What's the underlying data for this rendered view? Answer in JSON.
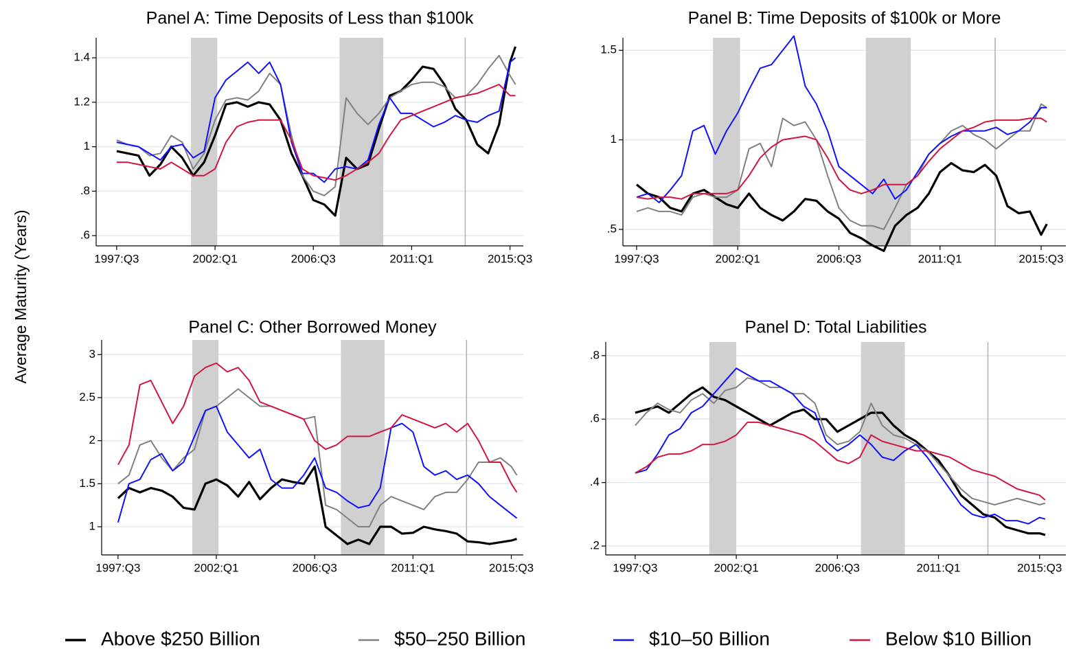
{
  "ylabel": "Average Maturity (Years)",
  "chart_data": [
    {
      "type": "line",
      "title": "Panel A: Time Deposits of Less than $100k",
      "x": [
        1997.5,
        1998,
        1998.5,
        1999,
        1999.5,
        2000,
        2000.5,
        2001,
        2001.5,
        2002,
        2002.5,
        2003,
        2003.5,
        2004,
        2004.5,
        2005,
        2005.5,
        2006,
        2006.5,
        2007,
        2007.5,
        2008,
        2008.5,
        2009,
        2009.5,
        2010,
        2010.5,
        2011,
        2011.5,
        2012,
        2012.5,
        2013,
        2013.5,
        2014,
        2014.5,
        2015,
        2015.5,
        2015.75
      ],
      "series": [
        {
          "name": "Above $250 Billion",
          "color": "#000000",
          "values": [
            0.98,
            0.97,
            0.96,
            0.87,
            0.92,
            1.0,
            0.95,
            0.87,
            0.93,
            1.05,
            1.19,
            1.2,
            1.18,
            1.2,
            1.19,
            1.12,
            0.97,
            0.87,
            0.76,
            0.74,
            0.69,
            0.95,
            0.9,
            0.92,
            1.08,
            1.23,
            1.25,
            1.3,
            1.36,
            1.35,
            1.28,
            1.17,
            1.12,
            1.01,
            0.97,
            1.1,
            1.38,
            1.45
          ]
        },
        {
          "name": "$50–250 Billion",
          "color": "#808080",
          "values": [
            1.03,
            1.01,
            1.0,
            0.96,
            0.97,
            1.05,
            1.02,
            0.9,
            0.97,
            1.12,
            1.21,
            1.22,
            1.21,
            1.25,
            1.33,
            1.28,
            1.05,
            0.87,
            0.8,
            0.78,
            0.82,
            1.22,
            1.15,
            1.1,
            1.15,
            1.22,
            1.25,
            1.28,
            1.29,
            1.29,
            1.27,
            1.22,
            1.23,
            1.28,
            1.35,
            1.41,
            1.32,
            1.28
          ]
        },
        {
          "name": "$10–50 Billion",
          "color": "#1010ff",
          "values": [
            1.02,
            1.01,
            1.0,
            0.97,
            0.94,
            1.0,
            1.01,
            0.95,
            0.98,
            1.22,
            1.3,
            1.34,
            1.38,
            1.33,
            1.38,
            1.28,
            1.02,
            0.88,
            0.88,
            0.84,
            0.9,
            0.91,
            0.9,
            0.94,
            1.1,
            1.22,
            1.15,
            1.15,
            1.12,
            1.09,
            1.11,
            1.14,
            1.12,
            1.11,
            1.14,
            1.16,
            1.38,
            1.4
          ]
        },
        {
          "name": "Below $10 Billion",
          "color": "#d0163e",
          "values": [
            0.93,
            0.93,
            0.92,
            0.91,
            0.9,
            0.93,
            0.9,
            0.87,
            0.87,
            0.9,
            1.02,
            1.09,
            1.11,
            1.12,
            1.12,
            1.12,
            1.03,
            0.9,
            0.87,
            0.86,
            0.85,
            0.87,
            0.9,
            0.93,
            0.97,
            1.05,
            1.12,
            1.14,
            1.16,
            1.18,
            1.2,
            1.22,
            1.23,
            1.24,
            1.26,
            1.28,
            1.23,
            1.23
          ]
        }
      ],
      "xlim": [
        1996.56,
        2016.11
      ],
      "xticks": [
        {
          "value": 1997.5,
          "label": "1997:Q3"
        },
        {
          "value": 2002,
          "label": "2002:Q1"
        },
        {
          "value": 2006.5,
          "label": "2006:Q3"
        },
        {
          "value": 2011,
          "label": "2011:Q1"
        },
        {
          "value": 2015.5,
          "label": "2015:Q3"
        }
      ],
      "ylim": [
        0.554,
        1.49
      ],
      "yticks": [
        {
          "value": 0.6,
          "label": ".6"
        },
        {
          "value": 0.8,
          "label": ".8"
        },
        1,
        1.2,
        1.4
      ],
      "grid": true,
      "shaded_ranges": [
        [
          2000.9,
          2002.1
        ],
        [
          2007.7,
          2009.7
        ]
      ],
      "reference_line": 2013.45
    },
    {
      "type": "line",
      "title": "Panel B: Time Deposits of $100k or More",
      "x": [
        1997.5,
        1998,
        1998.5,
        1999,
        1999.5,
        2000,
        2000.5,
        2001,
        2001.5,
        2002,
        2002.5,
        2003,
        2003.5,
        2004,
        2004.5,
        2005,
        2005.5,
        2006,
        2006.5,
        2007,
        2007.5,
        2008,
        2008.5,
        2009,
        2009.5,
        2010,
        2010.5,
        2011,
        2011.5,
        2012,
        2012.5,
        2013,
        2013.5,
        2014,
        2014.5,
        2015,
        2015.5,
        2015.75
      ],
      "series": [
        {
          "name": "Above $250 Billion",
          "color": "#000000",
          "values": [
            0.75,
            0.7,
            0.68,
            0.62,
            0.6,
            0.7,
            0.72,
            0.68,
            0.64,
            0.62,
            0.7,
            0.62,
            0.58,
            0.55,
            0.6,
            0.67,
            0.66,
            0.6,
            0.56,
            0.48,
            0.45,
            0.41,
            0.38,
            0.52,
            0.58,
            0.62,
            0.7,
            0.82,
            0.87,
            0.83,
            0.82,
            0.86,
            0.8,
            0.63,
            0.59,
            0.6,
            0.47,
            0.53
          ]
        },
        {
          "name": "$50–250 Billion",
          "color": "#808080",
          "values": [
            0.6,
            0.62,
            0.6,
            0.6,
            0.58,
            0.68,
            0.7,
            0.68,
            0.68,
            0.72,
            0.95,
            0.98,
            0.85,
            1.12,
            1.08,
            1.1,
            1.0,
            0.8,
            0.62,
            0.55,
            0.52,
            0.52,
            0.5,
            0.62,
            0.75,
            0.8,
            0.92,
            0.98,
            1.05,
            1.08,
            1.03,
            1.0,
            0.95,
            1.0,
            1.05,
            1.05,
            1.2,
            1.18
          ]
        },
        {
          "name": "$10–50 Billion",
          "color": "#1010ff",
          "values": [
            0.68,
            0.7,
            0.65,
            0.72,
            0.8,
            1.05,
            1.08,
            0.92,
            1.05,
            1.15,
            1.28,
            1.4,
            1.42,
            1.5,
            1.58,
            1.3,
            1.2,
            1.05,
            0.85,
            0.8,
            0.75,
            0.7,
            0.78,
            0.67,
            0.72,
            0.82,
            0.92,
            0.98,
            1.02,
            1.05,
            1.05,
            1.05,
            1.07,
            1.03,
            1.05,
            1.1,
            1.18,
            1.18
          ]
        },
        {
          "name": "Below $10 Billion",
          "color": "#d0163e",
          "values": [
            0.68,
            0.67,
            0.68,
            0.68,
            0.67,
            0.7,
            0.7,
            0.7,
            0.7,
            0.72,
            0.8,
            0.9,
            0.96,
            1.0,
            1.01,
            1.02,
            1.0,
            0.9,
            0.78,
            0.72,
            0.7,
            0.72,
            0.75,
            0.75,
            0.75,
            0.8,
            0.88,
            0.95,
            1.0,
            1.05,
            1.07,
            1.1,
            1.11,
            1.11,
            1.11,
            1.12,
            1.12,
            1.1
          ]
        }
      ],
      "xlim": [
        1996.89,
        2016.6
      ],
      "xticks": [
        {
          "value": 1997.5,
          "label": "1997:Q3"
        },
        {
          "value": 2002,
          "label": "2002:Q1"
        },
        {
          "value": 2006.5,
          "label": "2006:Q3"
        },
        {
          "value": 2011,
          "label": "2011:Q1"
        },
        {
          "value": 2015.5,
          "label": "2015:Q3"
        }
      ],
      "ylim": [
        0.408,
        1.57
      ],
      "yticks": [
        {
          "value": 0.5,
          "label": ".5"
        },
        1,
        1.5
      ],
      "grid": true,
      "shaded_ranges": [
        [
          2000.9,
          2002.1
        ],
        [
          2007.7,
          2009.7
        ]
      ],
      "reference_line": 2013.45
    },
    {
      "type": "line",
      "title": "Panel C: Other Borrowed Money",
      "x": [
        1997.5,
        1998,
        1998.5,
        1999,
        1999.5,
        2000,
        2000.5,
        2001,
        2001.5,
        2002,
        2002.5,
        2003,
        2003.5,
        2004,
        2004.5,
        2005,
        2005.5,
        2006,
        2006.5,
        2007,
        2007.5,
        2008,
        2008.5,
        2009,
        2009.5,
        2010,
        2010.5,
        2011,
        2011.5,
        2012,
        2012.5,
        2013,
        2013.5,
        2014,
        2014.5,
        2015,
        2015.5,
        2015.75
      ],
      "series": [
        {
          "name": "Above $250 Billion",
          "color": "#000000",
          "values": [
            1.33,
            1.45,
            1.4,
            1.45,
            1.42,
            1.35,
            1.22,
            1.2,
            1.5,
            1.55,
            1.48,
            1.35,
            1.52,
            1.32,
            1.45,
            1.55,
            1.52,
            1.5,
            1.7,
            1.0,
            0.9,
            0.8,
            0.85,
            0.8,
            1.0,
            1.0,
            0.92,
            0.93,
            1.0,
            0.97,
            0.95,
            0.92,
            0.83,
            0.82,
            0.8,
            0.82,
            0.84,
            0.86
          ]
        },
        {
          "name": "$50–250 Billion",
          "color": "#808080",
          "values": [
            1.5,
            1.6,
            1.95,
            2.0,
            1.8,
            1.65,
            1.8,
            1.9,
            2.35,
            2.4,
            2.5,
            2.6,
            2.5,
            2.4,
            2.4,
            2.35,
            2.3,
            2.25,
            2.28,
            1.25,
            1.2,
            1.1,
            1.0,
            1.0,
            1.25,
            1.35,
            1.3,
            1.25,
            1.2,
            1.35,
            1.4,
            1.4,
            1.55,
            1.75,
            1.75,
            1.8,
            1.7,
            1.6
          ]
        },
        {
          "name": "$10–50 Billion",
          "color": "#1010ff",
          "values": [
            1.05,
            1.5,
            1.55,
            1.78,
            1.85,
            1.65,
            1.75,
            2.05,
            2.35,
            2.4,
            2.1,
            1.95,
            1.8,
            1.9,
            1.55,
            1.45,
            1.45,
            1.6,
            1.8,
            1.45,
            1.4,
            1.3,
            1.22,
            1.25,
            1.45,
            2.15,
            2.2,
            2.1,
            1.7,
            1.6,
            1.65,
            1.55,
            1.6,
            1.5,
            1.35,
            1.25,
            1.15,
            1.1
          ]
        },
        {
          "name": "Below $10 Billion",
          "color": "#d0163e",
          "values": [
            1.72,
            1.95,
            2.65,
            2.7,
            2.45,
            2.2,
            2.4,
            2.75,
            2.85,
            2.9,
            2.8,
            2.85,
            2.7,
            2.45,
            2.4,
            2.35,
            2.3,
            2.25,
            2.0,
            1.9,
            1.95,
            2.05,
            2.05,
            2.05,
            2.1,
            2.15,
            2.3,
            2.25,
            2.2,
            2.15,
            2.2,
            2.1,
            2.2,
            2.0,
            1.75,
            1.75,
            1.5,
            1.4
          ]
        }
      ],
      "xlim": [
        1996.75,
        2016.05
      ],
      "xticks": [
        {
          "value": 1997.5,
          "label": "1997:Q3"
        },
        {
          "value": 2002,
          "label": "2002:Q1"
        },
        {
          "value": 2006.5,
          "label": "2006:Q3"
        },
        {
          "value": 2011,
          "label": "2011:Q1"
        },
        {
          "value": 2015.5,
          "label": "2015:Q3"
        }
      ],
      "ylim": [
        0.673,
        3.17
      ],
      "yticks": [
        1,
        1.5,
        2,
        2.5,
        3
      ],
      "grid": true,
      "shaded_ranges": [
        [
          2000.9,
          2002.1
        ],
        [
          2007.7,
          2009.7
        ]
      ],
      "reference_line": 2013.45
    },
    {
      "type": "line",
      "title": "Panel D: Total Liabilities",
      "x": [
        1997.5,
        1998,
        1998.5,
        1999,
        1999.5,
        2000,
        2000.5,
        2001,
        2001.5,
        2002,
        2002.5,
        2003,
        2003.5,
        2004,
        2004.5,
        2005,
        2005.5,
        2006,
        2006.5,
        2007,
        2007.5,
        2008,
        2008.5,
        2009,
        2009.5,
        2010,
        2010.5,
        2011,
        2011.5,
        2012,
        2012.5,
        2013,
        2013.5,
        2014,
        2014.5,
        2015,
        2015.5,
        2015.75
      ],
      "series": [
        {
          "name": "Above $250 Billion",
          "color": "#000000",
          "values": [
            0.62,
            0.63,
            0.64,
            0.62,
            0.65,
            0.68,
            0.7,
            0.67,
            0.66,
            0.64,
            0.62,
            0.6,
            0.58,
            0.6,
            0.62,
            0.63,
            0.6,
            0.6,
            0.56,
            0.58,
            0.6,
            0.62,
            0.62,
            0.58,
            0.55,
            0.53,
            0.5,
            0.47,
            0.42,
            0.36,
            0.33,
            0.3,
            0.29,
            0.26,
            0.25,
            0.24,
            0.24,
            0.235
          ]
        },
        {
          "name": "$50–250 Billion",
          "color": "#808080",
          "values": [
            0.58,
            0.62,
            0.65,
            0.63,
            0.62,
            0.66,
            0.68,
            0.65,
            0.69,
            0.7,
            0.73,
            0.72,
            0.7,
            0.7,
            0.68,
            0.68,
            0.65,
            0.55,
            0.52,
            0.53,
            0.56,
            0.65,
            0.58,
            0.55,
            0.54,
            0.52,
            0.5,
            0.46,
            0.42,
            0.38,
            0.35,
            0.34,
            0.33,
            0.34,
            0.35,
            0.34,
            0.33,
            0.335
          ]
        },
        {
          "name": "$10–50 Billion",
          "color": "#1010ff",
          "values": [
            0.43,
            0.44,
            0.49,
            0.55,
            0.57,
            0.62,
            0.64,
            0.68,
            0.72,
            0.76,
            0.74,
            0.72,
            0.72,
            0.7,
            0.68,
            0.64,
            0.62,
            0.53,
            0.5,
            0.52,
            0.55,
            0.52,
            0.48,
            0.47,
            0.5,
            0.52,
            0.48,
            0.43,
            0.38,
            0.33,
            0.3,
            0.29,
            0.3,
            0.28,
            0.28,
            0.27,
            0.29,
            0.285
          ]
        },
        {
          "name": "Below $10 Billion",
          "color": "#d0163e",
          "values": [
            0.43,
            0.45,
            0.48,
            0.49,
            0.49,
            0.5,
            0.52,
            0.52,
            0.53,
            0.55,
            0.59,
            0.59,
            0.58,
            0.57,
            0.56,
            0.55,
            0.53,
            0.5,
            0.47,
            0.46,
            0.48,
            0.55,
            0.53,
            0.52,
            0.51,
            0.5,
            0.5,
            0.49,
            0.48,
            0.46,
            0.44,
            0.43,
            0.42,
            0.4,
            0.38,
            0.37,
            0.36,
            0.345
          ]
        }
      ],
      "xlim": [
        1996.19,
        2016.67
      ],
      "xticks": [
        {
          "value": 1997.5,
          "label": "1997:Q3"
        },
        {
          "value": 2002,
          "label": "2002:Q1"
        },
        {
          "value": 2006.5,
          "label": "2006:Q3"
        },
        {
          "value": 2011,
          "label": "2011:Q1"
        },
        {
          "value": 2015.5,
          "label": "2015:Q3"
        }
      ],
      "ylim": [
        0.172,
        0.843
      ],
      "yticks": [
        {
          "value": 0.2,
          "label": ".2"
        },
        {
          "value": 0.4,
          "label": ".4"
        },
        {
          "value": 0.6,
          "label": ".6"
        },
        {
          "value": 0.8,
          "label": ".8"
        }
      ],
      "grid": true,
      "shaded_ranges": [
        [
          2000.8,
          2002.0
        ],
        [
          2007.55,
          2009.5
        ]
      ],
      "reference_line": 2013.2
    }
  ]
}
